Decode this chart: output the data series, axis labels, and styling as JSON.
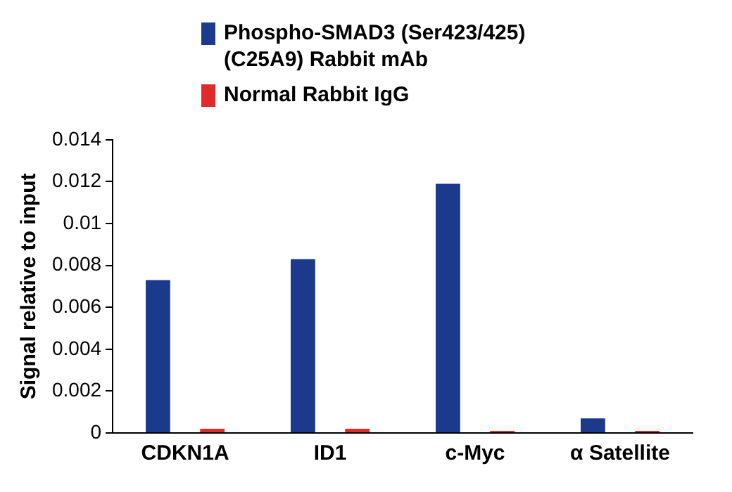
{
  "chart_data": {
    "type": "bar",
    "ylabel": "Signal relative to input",
    "categories": [
      "CDKN1A",
      "ID1",
      "c-Myc",
      "α Satellite"
    ],
    "series": [
      {
        "name": "Phospho-SMAD3 (Ser423/425) (C25A9) Rabbit mAb",
        "color": "#1b3a8c",
        "values": [
          0.0073,
          0.0083,
          0.0119,
          0.0007
        ]
      },
      {
        "name": "Normal Rabbit IgG",
        "color": "#e02b2b",
        "values": [
          0.0002,
          0.0002,
          0.0001,
          0.0001
        ]
      }
    ],
    "ylim": [
      0,
      0.014
    ],
    "yticks": [
      0,
      0.002,
      0.004,
      0.006,
      0.008,
      0.01,
      0.012,
      0.014
    ],
    "grid": false,
    "legend": "top"
  }
}
